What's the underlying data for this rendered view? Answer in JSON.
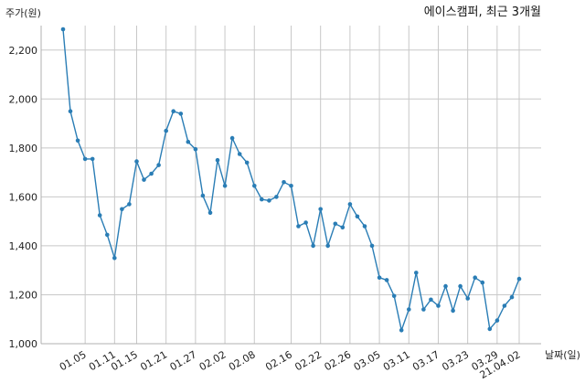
{
  "chart_data": {
    "type": "line",
    "title": "에이스캠퍼, 최근 3개월",
    "ylabel": "주가(원)",
    "xlabel": "날짜(일)",
    "ylim": [
      1000,
      2300
    ],
    "y_ticks": [
      1000,
      1200,
      1400,
      1600,
      1800,
      2000,
      2200
    ],
    "y_tick_labels": [
      "1,000",
      "1,200",
      "1,400",
      "1,600",
      "1,800",
      "2,000",
      "2,200"
    ],
    "x_tick_labels": [
      "01.05",
      "01.11",
      "01.15",
      "01.21",
      "01.27",
      "02.02",
      "02.08",
      "02.16",
      "02.22",
      "02.26",
      "03.05",
      "03.11",
      "03.17",
      "03.23",
      "03.29",
      "21.04.02"
    ],
    "x_tick_index": [
      3,
      7,
      10,
      14,
      18,
      22,
      26,
      31,
      35,
      39,
      43,
      47,
      51,
      55,
      59,
      62
    ],
    "grid": true,
    "line_color": "#2a7db5",
    "series": [
      {
        "values": [
          2285,
          1950,
          1830,
          1755,
          1755,
          1525,
          1445,
          1350,
          1550,
          1570,
          1745,
          1670,
          1695,
          1730,
          1870,
          1950,
          1940,
          1825,
          1795,
          1605,
          1535,
          1750,
          1645,
          1840,
          1775,
          1740,
          1645,
          1590,
          1585,
          1600,
          1660,
          1645,
          1480,
          1495,
          1400,
          1550,
          1400,
          1490,
          1475,
          1570,
          1520,
          1480,
          1400,
          1270,
          1260,
          1195,
          1055,
          1140,
          1290,
          1140,
          1180,
          1155,
          1235,
          1135,
          1235,
          1185,
          1270,
          1250,
          1060,
          1095,
          1155,
          1190,
          1265
        ]
      }
    ]
  }
}
